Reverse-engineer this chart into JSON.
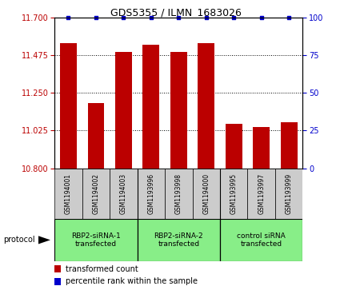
{
  "title": "GDS5355 / ILMN_1683026",
  "samples": [
    "GSM1194001",
    "GSM1194002",
    "GSM1194003",
    "GSM1193996",
    "GSM1193998",
    "GSM1194000",
    "GSM1193995",
    "GSM1193997",
    "GSM1193999"
  ],
  "bar_values": [
    11.545,
    11.19,
    11.495,
    11.535,
    11.495,
    11.545,
    11.065,
    11.045,
    11.075
  ],
  "ylim_left": [
    10.8,
    11.7
  ],
  "ylim_right": [
    0,
    100
  ],
  "yticks_left": [
    10.8,
    11.025,
    11.25,
    11.475,
    11.7
  ],
  "yticks_right": [
    0,
    25,
    50,
    75,
    100
  ],
  "bar_color": "#bb0000",
  "dot_color": "#0000cc",
  "groups": [
    {
      "label": "RBP2-siRNA-1\ntransfected",
      "start": 0,
      "end": 3,
      "color": "#88ee88"
    },
    {
      "label": "RBP2-siRNA-2\ntransfected",
      "start": 3,
      "end": 6,
      "color": "#88ee88"
    },
    {
      "label": "control siRNA\ntransfected",
      "start": 6,
      "end": 9,
      "color": "#88ee88"
    }
  ],
  "legend_items": [
    {
      "color": "#bb0000",
      "label": "transformed count"
    },
    {
      "color": "#0000cc",
      "label": "percentile rank within the sample"
    }
  ],
  "protocol_label": "protocol",
  "tick_area_bg": "#cccccc",
  "group_dividers": [
    2.5,
    5.5
  ]
}
